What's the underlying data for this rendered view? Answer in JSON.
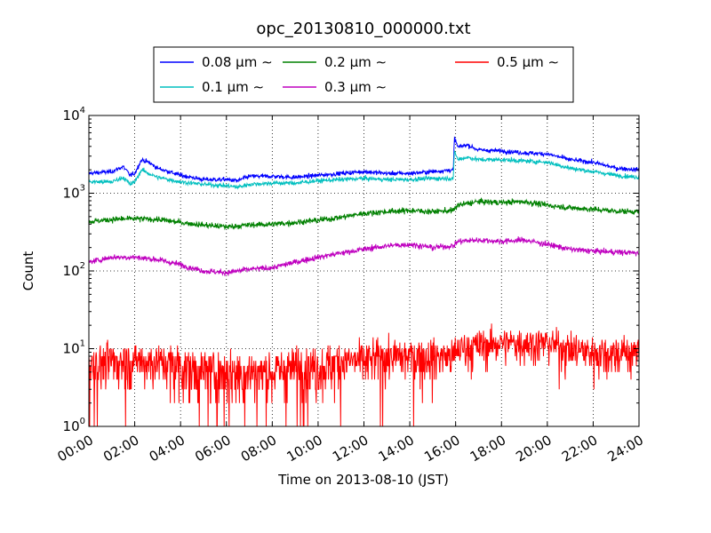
{
  "chart_data": {
    "type": "line",
    "title": "opc_20130810_000000.txt",
    "xlabel": "Time on 2013-08-10 (JST)",
    "ylabel": "Count",
    "y_scale": "log",
    "ylim": [
      1,
      10000
    ],
    "x_range": [
      "2013-08-10 00:00",
      "2013-08-11 00:00"
    ],
    "x_ticks": [
      "00:00",
      "02:00",
      "04:00",
      "06:00",
      "08:00",
      "10:00",
      "12:00",
      "14:00",
      "16:00",
      "18:00",
      "20:00",
      "22:00",
      "24:00"
    ],
    "y_ticks": [
      {
        "value": 1,
        "base": "10",
        "exp": "0"
      },
      {
        "value": 10,
        "base": "10",
        "exp": "1"
      },
      {
        "value": 100,
        "base": "10",
        "exp": "2"
      },
      {
        "value": 1000,
        "base": "10",
        "exp": "3"
      },
      {
        "value": 10000,
        "base": "10",
        "exp": "4"
      }
    ],
    "grid": true,
    "legend_position": "top-center",
    "series": [
      {
        "name": "0.08",
        "color": "#0000ff",
        "hours": [
          0,
          1,
          1.5,
          1.8,
          2,
          2.3,
          2.6,
          3,
          4,
          5,
          6,
          6.5,
          7,
          8,
          9,
          10,
          11,
          12,
          13,
          14,
          15,
          15.9,
          15.95,
          16.1,
          16.5,
          17,
          18,
          19,
          20,
          21,
          22,
          23,
          24
        ],
        "values": [
          1800,
          1900,
          2200,
          1700,
          1800,
          2700,
          2500,
          2100,
          1700,
          1500,
          1500,
          1450,
          1650,
          1650,
          1600,
          1700,
          1800,
          1900,
          1800,
          1800,
          1900,
          2000,
          5200,
          3900,
          4200,
          3600,
          3500,
          3300,
          3200,
          2700,
          2500,
          2100,
          2000
        ]
      },
      {
        "name": "0.1",
        "color": "#00bfbf",
        "hours": [
          0,
          1,
          1.5,
          1.8,
          2,
          2.3,
          2.6,
          3,
          4,
          5,
          6,
          6.5,
          7,
          8,
          9,
          10,
          11,
          12,
          13,
          14,
          15,
          15.9,
          15.95,
          16.1,
          16.5,
          17,
          18,
          19,
          20,
          21,
          22,
          23,
          24
        ],
        "values": [
          1400,
          1400,
          1600,
          1300,
          1400,
          2000,
          1800,
          1600,
          1400,
          1300,
          1250,
          1200,
          1300,
          1350,
          1350,
          1450,
          1500,
          1550,
          1500,
          1500,
          1550,
          1550,
          3500,
          2700,
          2900,
          2700,
          2700,
          2600,
          2500,
          2100,
          1900,
          1700,
          1600
        ]
      },
      {
        "name": "0.2",
        "color": "#008000",
        "hours": [
          0,
          1,
          2,
          3,
          4,
          5,
          6,
          7,
          8,
          9,
          10,
          11,
          12,
          13,
          14,
          15,
          15.9,
          16.1,
          17,
          18,
          19,
          20,
          21,
          22,
          23,
          24
        ],
        "values": [
          430,
          460,
          470,
          460,
          420,
          390,
          370,
          390,
          400,
          420,
          450,
          490,
          550,
          580,
          600,
          580,
          600,
          700,
          780,
          760,
          780,
          700,
          650,
          620,
          590,
          580
        ]
      },
      {
        "name": "0.3",
        "color": "#bf00bf",
        "hours": [
          0,
          1,
          2,
          3,
          4,
          5,
          6,
          7,
          8,
          9,
          10,
          11,
          12,
          13,
          14,
          15,
          15.9,
          16.1,
          17,
          18,
          19,
          20,
          21,
          22,
          23,
          24
        ],
        "values": [
          130,
          150,
          150,
          140,
          120,
          100,
          95,
          105,
          110,
          130,
          150,
          170,
          190,
          210,
          220,
          200,
          210,
          240,
          250,
          240,
          250,
          220,
          190,
          180,
          175,
          170
        ]
      },
      {
        "name": "0.5",
        "color": "#ff0000",
        "hours": [
          0,
          1,
          2,
          3,
          4,
          5,
          6,
          7,
          8,
          9,
          10,
          11,
          12,
          13,
          14,
          15,
          15.9,
          16.1,
          17,
          18,
          19,
          20,
          21,
          22,
          23,
          24
        ],
        "values": [
          6,
          7,
          7,
          7,
          6,
          5,
          5,
          5,
          5,
          6,
          6,
          7,
          7,
          8,
          8,
          8,
          8,
          10,
          11,
          12,
          12,
          12,
          10,
          9,
          9,
          9
        ]
      }
    ]
  },
  "legend": {
    "unit_label": "μm ∼"
  }
}
